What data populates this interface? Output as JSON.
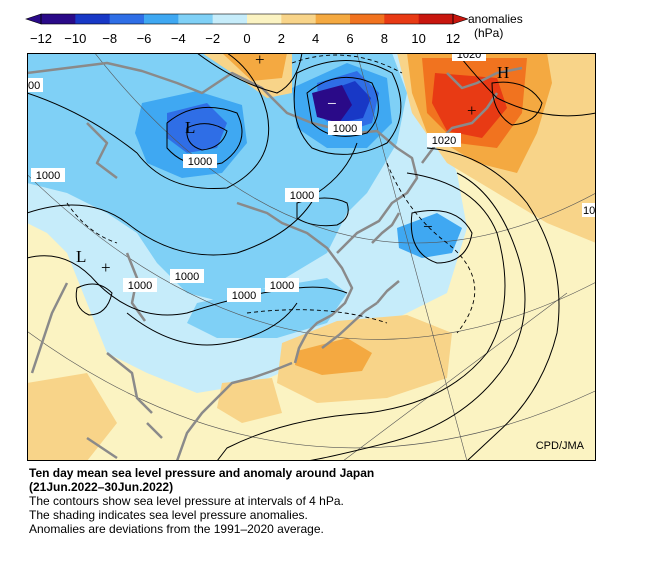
{
  "colorbar": {
    "title_line1": "anomalies",
    "title_line2": "(hPa)",
    "ticks": [
      "−12",
      "−10",
      "−8",
      "−6",
      "−4",
      "−2",
      "0",
      "2",
      "4",
      "6",
      "8",
      "10",
      "12"
    ],
    "colors": {
      "neg_12": "#2a0a88",
      "neg_10": "#1838c6",
      "neg_8": "#2f6ee6",
      "neg_6": "#3fa8f2",
      "neg_4": "#7fd0f6",
      "neg_2": "#c6ecfa",
      "pos_2": "#fbf3c2",
      "pos_4": "#f8d489",
      "pos_6": "#f4a941",
      "pos_8": "#f1731f",
      "pos_10": "#e83a14",
      "pos_12": "#c8160e"
    }
  },
  "map": {
    "contour_labels": [
      "1000",
      "1000",
      "1000",
      "1000",
      "1000",
      "1000",
      "1000",
      "1000",
      "1000",
      "1020",
      "1020",
      "10",
      "00"
    ],
    "symbols": {
      "low_1": "L",
      "low_2": "L",
      "high": "H",
      "plus": "+",
      "minus": "−"
    },
    "credit": "CPD/JMA"
  },
  "caption": {
    "title_line1": "Ten day mean sea level pressure and anomaly around Japan",
    "title_line2": "(21Jun.2022–30Jun.2022)",
    "line3": "The contours show sea level pressure at intervals of 4 hPa.",
    "line4": "The shading indicates sea level pressure anomalies.",
    "line5": "Anomalies are deviations from the 1991–2020 average."
  }
}
